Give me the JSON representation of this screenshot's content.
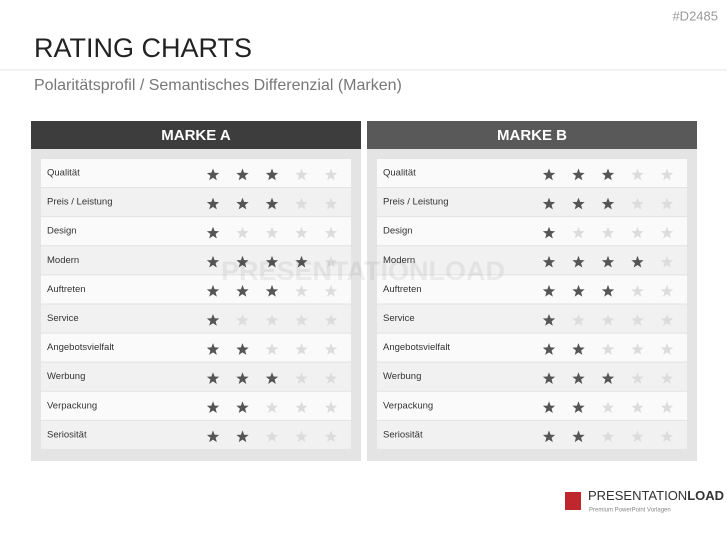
{
  "code": "#D2485",
  "title": "RATING CHARTS",
  "subtitle": "Polaritätsprofil / Semantisches Differenzial (Marken)",
  "max_rating": 5,
  "panels": [
    {
      "title": "MARKE A",
      "rows": [
        {
          "label": "Qualität",
          "rating": 3
        },
        {
          "label": "Preis / Leistung",
          "rating": 3
        },
        {
          "label": "Design",
          "rating": 1
        },
        {
          "label": "Modern",
          "rating": 4
        },
        {
          "label": "Auftreten",
          "rating": 3
        },
        {
          "label": "Service",
          "rating": 1
        },
        {
          "label": "Angebotsvielfalt",
          "rating": 2
        },
        {
          "label": "Werbung",
          "rating": 3
        },
        {
          "label": "Verpackung",
          "rating": 2
        },
        {
          "label": "Seriosität",
          "rating": 2
        }
      ]
    },
    {
      "title": "MARKE B",
      "rows": [
        {
          "label": "Qualität",
          "rating": 3
        },
        {
          "label": "Preis / Leistung",
          "rating": 3
        },
        {
          "label": "Design",
          "rating": 1
        },
        {
          "label": "Modern",
          "rating": 4
        },
        {
          "label": "Auftreten",
          "rating": 3
        },
        {
          "label": "Service",
          "rating": 1
        },
        {
          "label": "Angebotsvielfalt",
          "rating": 2
        },
        {
          "label": "Werbung",
          "rating": 3
        },
        {
          "label": "Verpackung",
          "rating": 2
        },
        {
          "label": "Seriosität",
          "rating": 2
        }
      ]
    }
  ],
  "watermark": "PRESENTATIONLOAD",
  "logo": {
    "name_light": "PRESENTATION",
    "name_bold": "LOAD",
    "tagline": "Premium PowerPoint Vorlagen"
  }
}
